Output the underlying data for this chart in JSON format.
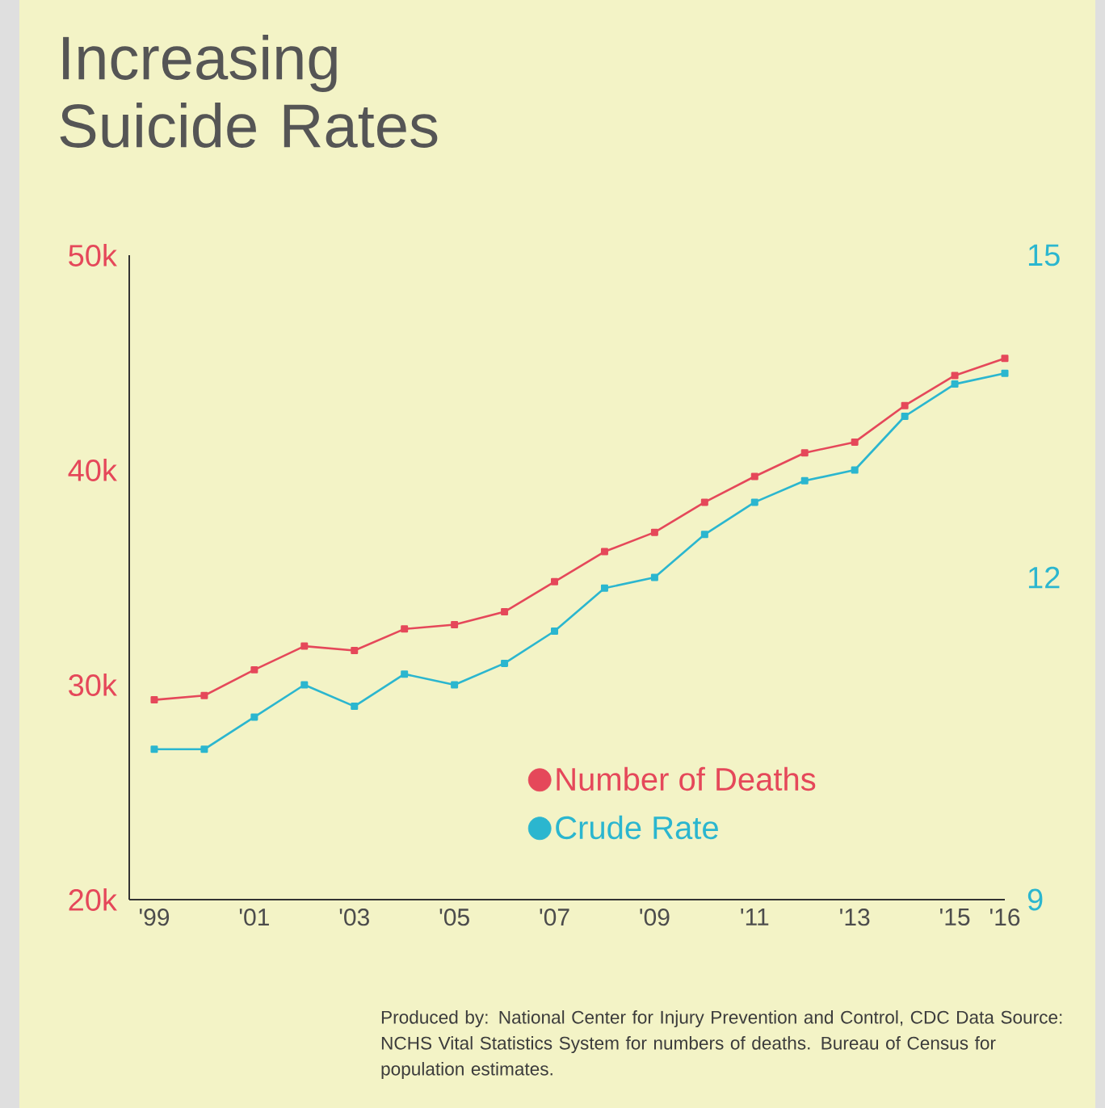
{
  "chart_data": {
    "type": "line",
    "title": "Increasing Suicide Rates",
    "annotations": [
      "Produced by: National Center for Injury Prevention and Control, CDC Data Source: NCHS Vital Statistics System for numbers of deaths. Bureau of Census for population estimates."
    ],
    "categories": [
      "'99",
      null,
      "'01",
      null,
      "'03",
      null,
      "'05",
      null,
      "'07",
      null,
      "'09",
      null,
      "'11",
      null,
      "'13",
      null,
      "'15",
      "'16"
    ],
    "series": [
      {
        "name": "Number of Deaths",
        "color": "#e5485a",
        "values": [
          29300,
          29500,
          30700,
          31800,
          31600,
          32600,
          32800,
          33400,
          34800,
          36200,
          37100,
          38500,
          39700,
          40800,
          41300,
          43000,
          44400,
          45200
        ]
      },
      {
        "name": "Crude Rate",
        "color": "#2bb6cf",
        "axis": "y2",
        "values": [
          10.4,
          10.4,
          10.7,
          11.0,
          10.8,
          11.1,
          11.0,
          11.2,
          11.5,
          11.9,
          12.0,
          12.4,
          12.7,
          12.9,
          13.0,
          13.5,
          13.8,
          13.9
        ]
      }
    ],
    "ylim": [
      20000,
      50000
    ],
    "yticks": [
      {
        "value": 20000,
        "label": "20k"
      },
      {
        "value": 30000,
        "label": "30k"
      },
      {
        "value": 40000,
        "label": "40k"
      },
      {
        "value": 50000,
        "label": "50k"
      }
    ],
    "y2lim": [
      9,
      15
    ],
    "y2ticks": [
      9,
      12,
      15
    ],
    "legend": "bottom right",
    "marker": "square"
  }
}
